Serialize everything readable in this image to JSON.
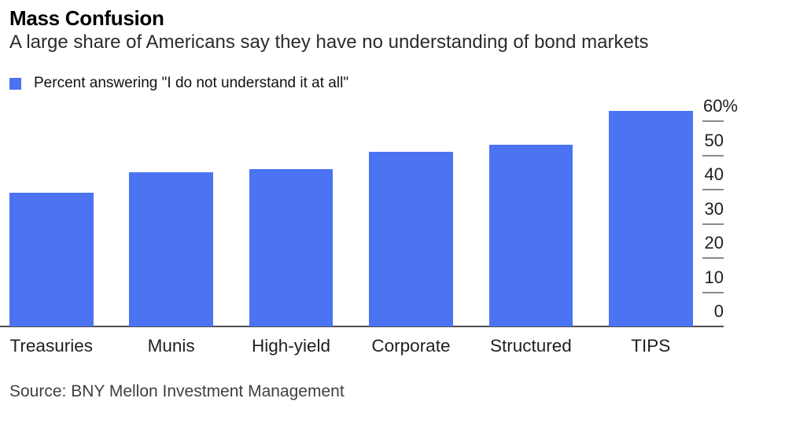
{
  "header": {
    "title": "Mass Confusion",
    "subtitle": "A large share of Americans say they have no understanding of bond markets"
  },
  "legend": {
    "label": "Percent answering \"I do not understand it at all\"",
    "swatch_color": "#4B73F2"
  },
  "chart_data": {
    "type": "bar",
    "categories": [
      "Treasuries",
      "Munis",
      "High-yield",
      "Corporate",
      "Structured",
      "TIPS"
    ],
    "values": [
      39,
      45,
      46,
      51,
      53,
      63
    ],
    "series_name": "Percent answering \"I do not understand it at all\"",
    "title": "Mass Confusion",
    "subtitle": "A large share of Americans say they have no understanding of bond markets",
    "xlabel": "",
    "ylabel": "",
    "ylim": [
      0,
      63
    ],
    "yticks": [
      0,
      10,
      20,
      30,
      40,
      50,
      60
    ],
    "ytick_top_suffix": "%",
    "bar_color": "#4B73F2",
    "axis_line_color": "#4d4d4d",
    "tick_mark_color": "#8a8a8a",
    "grid": false,
    "axis_side": "right",
    "legend_position": "top-left"
  },
  "footer": {
    "source": "Source: BNY Mellon Investment Management"
  }
}
